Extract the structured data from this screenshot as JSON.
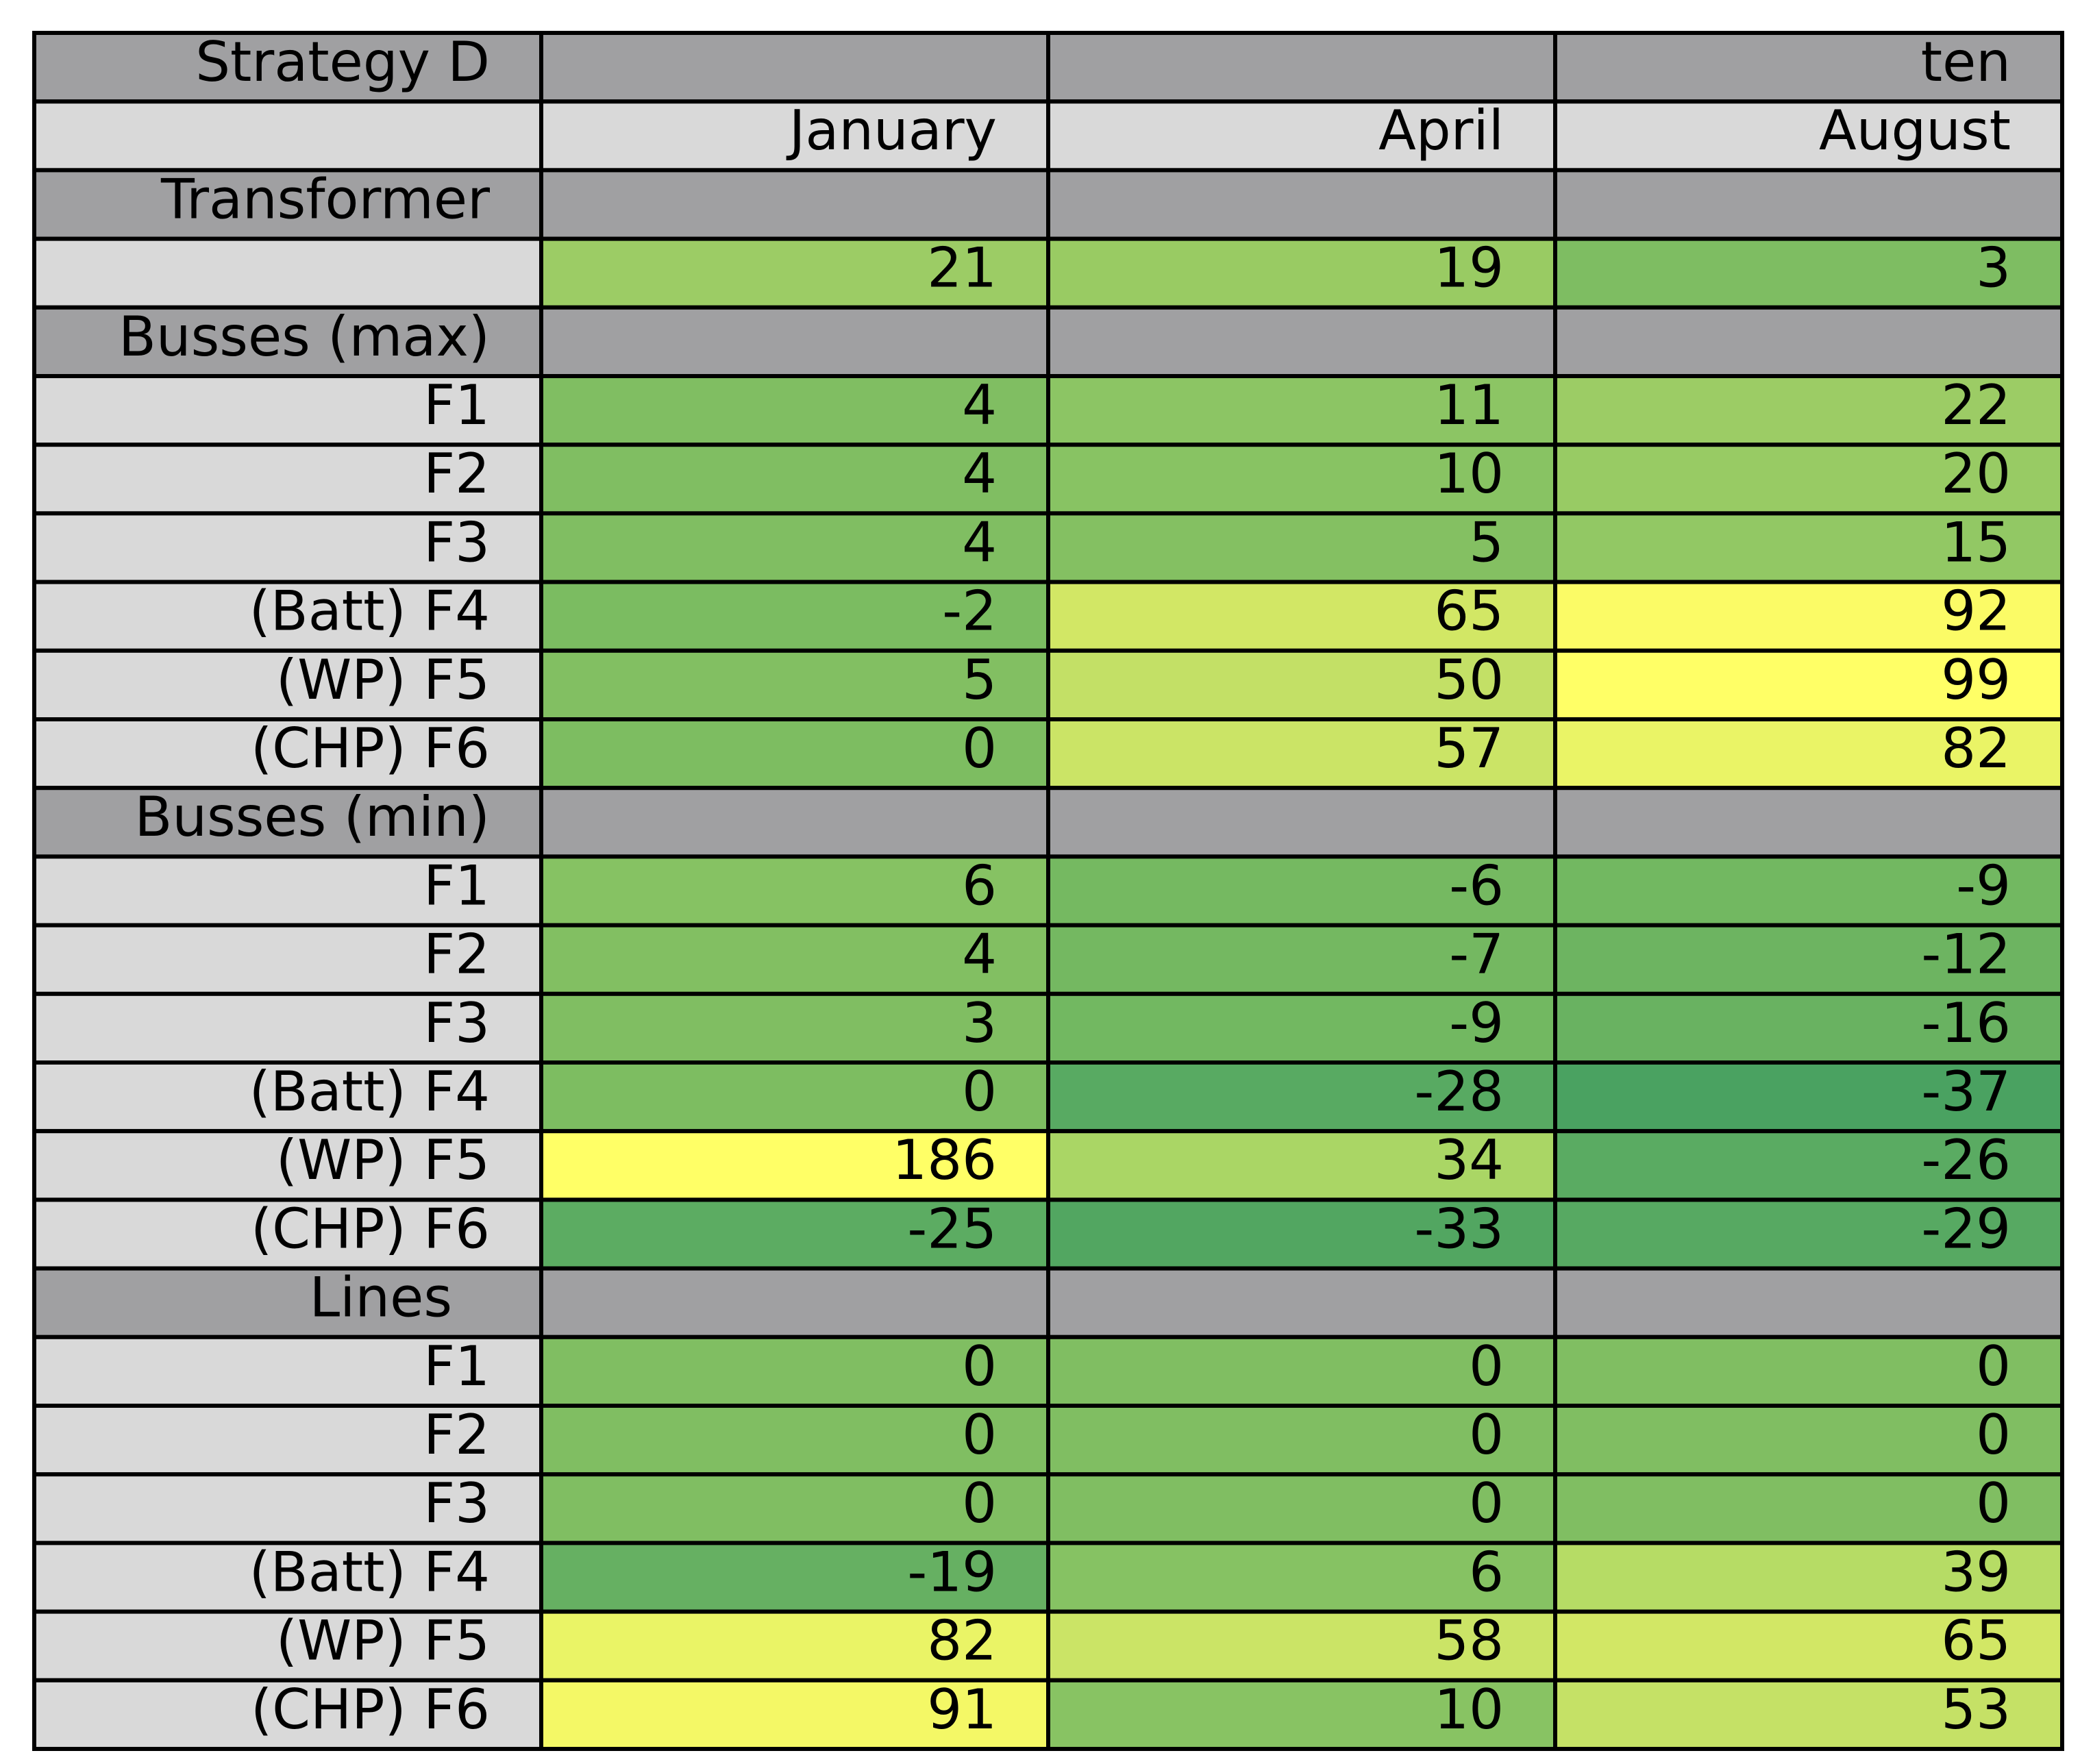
{
  "colors": {
    "header_bg": "#a0a0a2",
    "label_bg": "#d9d9d9",
    "border": "#000000",
    "scale_low": "#4aa261",
    "scale_mid": "#c2e06b",
    "scale_high": "#ffff66"
  },
  "chart_data": {
    "type": "table",
    "corner_title": "Strategy D",
    "top_header": [
      "",
      "",
      "ten"
    ],
    "columns": [
      "January",
      "April",
      "August"
    ],
    "sections": [
      {
        "name": "Transformer",
        "rows": [
          {
            "label": "",
            "values": [
              21,
              19,
              3
            ],
            "fills": [
              "#9ccc65",
              "#99cb63",
              "#7ebd62"
            ]
          }
        ]
      },
      {
        "name": "Busses (max)",
        "rows": [
          {
            "label": "F1",
            "values": [
              4,
              11,
              22
            ],
            "fills": [
              "#80be62",
              "#8cc564",
              "#9ccc65"
            ]
          },
          {
            "label": "F2",
            "values": [
              4,
              10,
              20
            ],
            "fills": [
              "#80be62",
              "#88c363",
              "#98cb64"
            ]
          },
          {
            "label": "F3",
            "values": [
              4,
              5,
              15
            ],
            "fills": [
              "#80be62",
              "#84c062",
              "#92c864"
            ]
          },
          {
            "label": "(Batt) F4",
            "values": [
              -2,
              65,
              92
            ],
            "fills": [
              "#7bbc61",
              "#d2e765",
              "#fbfb66"
            ]
          },
          {
            "label": "(WP) F5",
            "values": [
              5,
              50,
              99
            ],
            "fills": [
              "#82bf62",
              "#c3e066",
              "#ffff66"
            ]
          },
          {
            "label": "(CHP) F6",
            "values": [
              0,
              57,
              82
            ],
            "fills": [
              "#7dbd61",
              "#cbe466",
              "#eaf466"
            ]
          }
        ]
      },
      {
        "name": "Busses (min)",
        "rows": [
          {
            "label": "F1",
            "values": [
              6,
              -6,
              -9
            ],
            "fills": [
              "#86c263",
              "#75b961",
              "#72b861"
            ]
          },
          {
            "label": "F2",
            "values": [
              4,
              -7,
              -12
            ],
            "fills": [
              "#82bf62",
              "#74b861",
              "#6db461"
            ]
          },
          {
            "label": "F3",
            "values": [
              3,
              -9,
              -16
            ],
            "fills": [
              "#80be62",
              "#72b861",
              "#69b261"
            ]
          },
          {
            "label": "(Batt) F4",
            "values": [
              0,
              -28,
              -37
            ],
            "fills": [
              "#7dbd61",
              "#58aa62",
              "#4aa261"
            ]
          },
          {
            "label": "(WP) F5",
            "values": [
              186,
              34,
              -26
            ],
            "fills": [
              "#ffff66",
              "#aad665",
              "#5aab62"
            ]
          },
          {
            "label": "(CHP) F6",
            "values": [
              -25,
              -33,
              -29
            ],
            "fills": [
              "#5cac62",
              "#52a661",
              "#57a962"
            ]
          }
        ]
      },
      {
        "name": "Lines",
        "rows": [
          {
            "label": "F1",
            "values": [
              0,
              0,
              0
            ],
            "fills": [
              "#80be62",
              "#80be62",
              "#80be62"
            ]
          },
          {
            "label": "F2",
            "values": [
              0,
              0,
              0
            ],
            "fills": [
              "#80be62",
              "#80be62",
              "#80be62"
            ]
          },
          {
            "label": "F3",
            "values": [
              0,
              0,
              0
            ],
            "fills": [
              "#80be62",
              "#80be62",
              "#80be62"
            ]
          },
          {
            "label": "(Batt) F4",
            "values": [
              -19,
              6,
              39
            ],
            "fills": [
              "#66b062",
              "#86c263",
              "#b6dc65"
            ]
          },
          {
            "label": "(WP) F5",
            "values": [
              82,
              58,
              65
            ],
            "fills": [
              "#eaf466",
              "#cbe466",
              "#d2e765"
            ]
          },
          {
            "label": "(CHP) F6",
            "values": [
              91,
              10,
              53
            ],
            "fills": [
              "#f4f866",
              "#88c363",
              "#c5e166"
            ]
          }
        ]
      }
    ]
  }
}
